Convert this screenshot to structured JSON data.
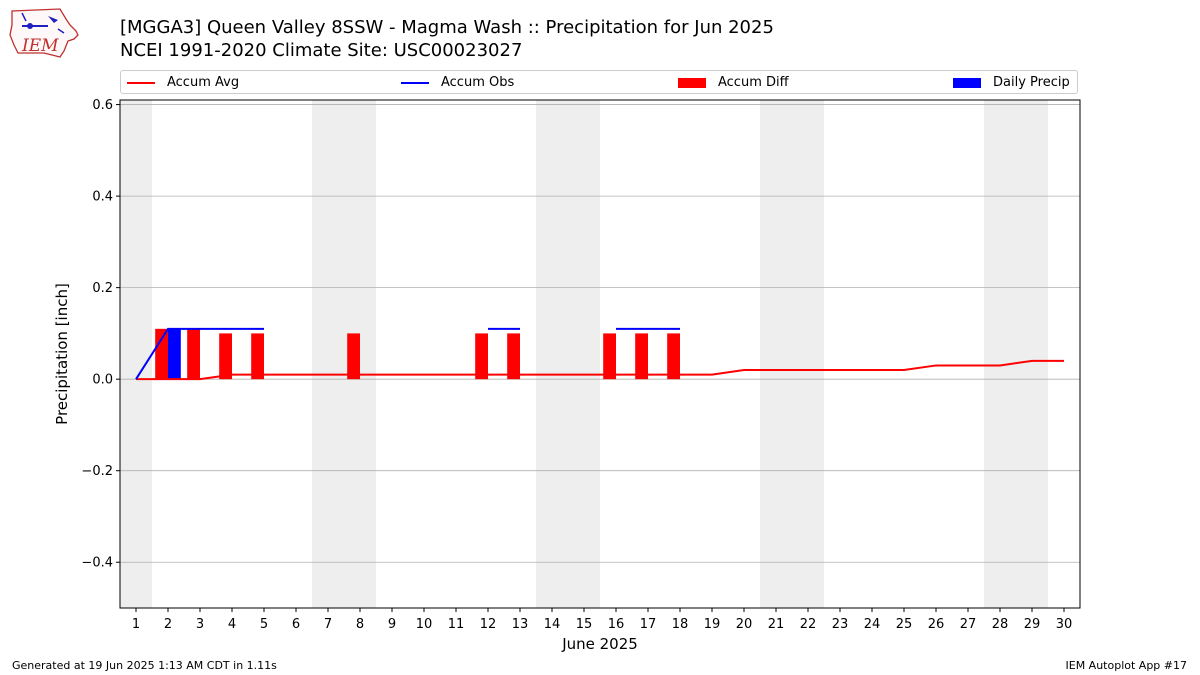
{
  "header": {
    "title_line1": "[MGGA3] Queen Valley 8SSW - Magma Wash :: Precipitation for Jun 2025",
    "title_line2": "NCEI 1991-2020 Climate Site: USC00023027",
    "logo_text": "IEM"
  },
  "footer": {
    "generated": "Generated at 19 Jun 2025 1:13 AM CDT in 1.11s",
    "app": "IEM Autoplot App #17"
  },
  "colors": {
    "accum_avg": "#ff0000",
    "accum_obs": "#0000ff",
    "accum_diff": "#ff0000",
    "daily_precip": "#0000ff",
    "weekend_band": "#eeeeee",
    "grid": "#b0b0b0"
  },
  "chart_data": {
    "type": "bar",
    "xlabel": "June 2025",
    "ylabel": "Precipitation [inch]",
    "xlim": [
      0.5,
      30.5
    ],
    "ylim": [
      -0.5,
      0.61
    ],
    "y_ticks": [
      -0.4,
      -0.2,
      0.0,
      0.2,
      0.4,
      0.6
    ],
    "y_tick_labels": [
      "−0.4",
      "−0.2",
      "0.0",
      "0.2",
      "0.4",
      "0.6"
    ],
    "x_ticks": [
      1,
      2,
      3,
      4,
      5,
      6,
      7,
      8,
      9,
      10,
      11,
      12,
      13,
      14,
      15,
      16,
      17,
      18,
      19,
      20,
      21,
      22,
      23,
      24,
      25,
      26,
      27,
      28,
      29,
      30
    ],
    "grid": "horizontal",
    "legend_position": "top",
    "weekend_bands": [
      [
        0.5,
        1.5
      ],
      [
        6.5,
        8.5
      ],
      [
        13.5,
        15.5
      ],
      [
        20.5,
        22.5
      ],
      [
        27.5,
        29.5
      ]
    ],
    "legend": [
      {
        "key": "accum_avg",
        "label": "Accum Avg",
        "style": "line"
      },
      {
        "key": "accum_obs",
        "label": "Accum Obs",
        "style": "line"
      },
      {
        "key": "accum_diff",
        "label": "Accum Diff",
        "style": "bar"
      },
      {
        "key": "daily_precip",
        "label": "Daily Precip",
        "style": "bar"
      }
    ],
    "series": [
      {
        "key": "accum_avg",
        "name": "Accum Avg",
        "x": [
          1,
          2,
          3,
          4,
          5,
          6,
          7,
          8,
          9,
          10,
          11,
          12,
          13,
          14,
          15,
          16,
          17,
          18,
          19,
          20,
          21,
          22,
          23,
          24,
          25,
          26,
          27,
          28,
          29,
          30
        ],
        "values": [
          0.0,
          0.0,
          0.0,
          0.01,
          0.01,
          0.01,
          0.01,
          0.01,
          0.01,
          0.01,
          0.01,
          0.01,
          0.01,
          0.01,
          0.01,
          0.01,
          0.01,
          0.01,
          0.01,
          0.02,
          0.02,
          0.02,
          0.02,
          0.02,
          0.02,
          0.03,
          0.03,
          0.03,
          0.04,
          0.04
        ]
      },
      {
        "key": "accum_obs",
        "name": "Accum Obs",
        "x": [
          1,
          2,
          3,
          4,
          5,
          12,
          13,
          16,
          17,
          18
        ],
        "values": [
          0.0,
          0.11,
          0.11,
          0.11,
          0.11,
          0.11,
          0.11,
          0.11,
          0.11,
          0.11
        ],
        "segments": [
          [
            1,
            2,
            3,
            4,
            5
          ],
          [
            12,
            13
          ],
          [
            16,
            17,
            18
          ]
        ]
      },
      {
        "key": "accum_diff",
        "name": "Accum Diff",
        "x": [
          2,
          3,
          4,
          5,
          8,
          12,
          13,
          16,
          17,
          18
        ],
        "values": [
          0.11,
          0.11,
          0.1,
          0.1,
          0.1,
          0.1,
          0.1,
          0.1,
          0.1,
          0.1
        ]
      },
      {
        "key": "daily_precip",
        "name": "Daily Precip",
        "x": [
          2
        ],
        "values": [
          0.11
        ]
      }
    ]
  }
}
